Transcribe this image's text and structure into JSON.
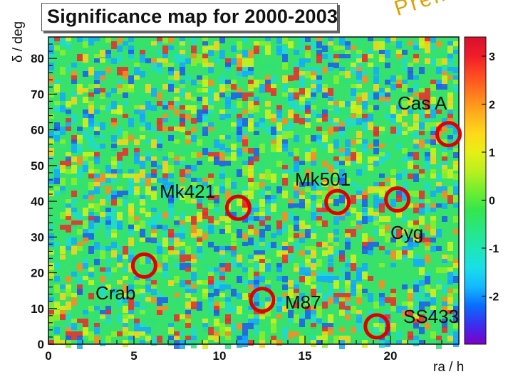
{
  "chart_data": {
    "type": "heatmap",
    "title": "Significance map for 2000-2003",
    "watermark": "Preliminary",
    "xlabel": "ra / h",
    "ylabel": "δ / deg",
    "xlim": [
      0,
      24
    ],
    "ylim": [
      0,
      86
    ],
    "x_ticks": [
      "0",
      "5",
      "10",
      "15",
      "20"
    ],
    "x_tick_values": [
      0,
      5,
      10,
      15,
      20
    ],
    "y_ticks": [
      "0",
      "10",
      "20",
      "30",
      "40",
      "50",
      "60",
      "70",
      "80"
    ],
    "y_tick_values": [
      0,
      10,
      20,
      30,
      40,
      50,
      60,
      70,
      80
    ],
    "colorbar": {
      "range": [
        -3,
        3.4
      ],
      "ticks": [
        "3",
        "2",
        "1",
        "0",
        "-1",
        "-2"
      ],
      "tick_values": [
        3,
        2,
        1,
        0,
        -1,
        -2
      ],
      "colors": [
        "#7e00c8",
        "#3b2ef0",
        "#0a6cff",
        "#13b9ff",
        "#19dfe8",
        "#1ee6b4",
        "#28e682",
        "#34e64c",
        "#73ee2e",
        "#b9f01e",
        "#e6ef16",
        "#ffd81a",
        "#ffae1c",
        "#ff7d1d",
        "#ff4b22",
        "#f01d28",
        "#d6112c"
      ]
    },
    "sources": [
      {
        "name": "Cas A",
        "ra": 23.4,
        "dec": 58.8
      },
      {
        "name": "Mk421",
        "ra": 11.1,
        "dec": 38.2
      },
      {
        "name": "Mk501",
        "ra": 16.9,
        "dec": 39.8
      },
      {
        "name": "Cyg",
        "ra": 20.4,
        "dec": 40.5
      },
      {
        "name": "Crab",
        "ra": 5.6,
        "dec": 22.0
      },
      {
        "name": "M87",
        "ra": 12.5,
        "dec": 12.4
      },
      {
        "name": "SS433",
        "ra": 19.2,
        "dec": 5.0
      }
    ]
  },
  "marker_color": "#e00000",
  "text_color": "#111111"
}
